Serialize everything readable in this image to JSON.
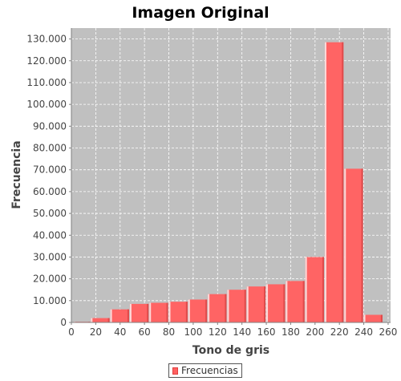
{
  "chart_data": {
    "type": "bar",
    "title": "Imagen Original",
    "xlabel": "Tono de gris",
    "ylabel": "Frecuencia",
    "xlim": [
      0,
      262
    ],
    "ylim": [
      0,
      135000
    ],
    "x_ticks": [
      0,
      20,
      40,
      60,
      80,
      100,
      120,
      140,
      160,
      180,
      200,
      220,
      240,
      260
    ],
    "y_ticks": [
      0,
      10000,
      20000,
      30000,
      40000,
      50000,
      60000,
      70000,
      80000,
      90000,
      100000,
      110000,
      120000,
      130000
    ],
    "y_tick_labels": [
      "0",
      "10.000",
      "20.000",
      "30.000",
      "40.000",
      "50.000",
      "60.000",
      "70.000",
      "80.000",
      "90.000",
      "100.000",
      "110.000",
      "120.000",
      "130.000"
    ],
    "grid": true,
    "legend_position": "bottom",
    "colors": {
      "bar": "#ff6464",
      "plot_background": "#c0c0c0",
      "grid": "#ffffff"
    },
    "series": [
      {
        "name": "Frecuencias",
        "bins": [
          {
            "x0": 2,
            "x1": 16,
            "value": 300
          },
          {
            "x0": 16,
            "x1": 32,
            "value": 2000
          },
          {
            "x0": 32,
            "x1": 48,
            "value": 6000
          },
          {
            "x0": 48,
            "x1": 64,
            "value": 8500
          },
          {
            "x0": 64,
            "x1": 80,
            "value": 9000
          },
          {
            "x0": 80,
            "x1": 96,
            "value": 9500
          },
          {
            "x0": 96,
            "x1": 112,
            "value": 10500
          },
          {
            "x0": 112,
            "x1": 128,
            "value": 13000
          },
          {
            "x0": 128,
            "x1": 144,
            "value": 15000
          },
          {
            "x0": 144,
            "x1": 160,
            "value": 16500
          },
          {
            "x0": 160,
            "x1": 176,
            "value": 17500
          },
          {
            "x0": 176,
            "x1": 192,
            "value": 19000
          },
          {
            "x0": 192,
            "x1": 208,
            "value": 30000
          },
          {
            "x0": 208,
            "x1": 224,
            "value": 128500
          },
          {
            "x0": 224,
            "x1": 240,
            "value": 70500
          },
          {
            "x0": 240,
            "x1": 256,
            "value": 3500
          }
        ]
      }
    ]
  }
}
